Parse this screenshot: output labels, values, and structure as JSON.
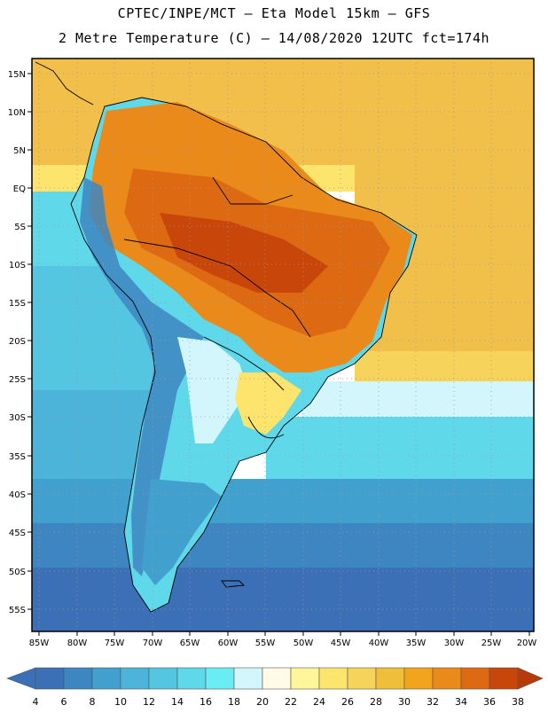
{
  "header": {
    "line1": "CPTEC/INPE/MCT –  Eta Model 15km – GFS",
    "line2": "2 Metre Temperature (C) – 14/08/2020 12UTC fct=174h"
  },
  "map": {
    "lat_labels": [
      "15N",
      "10N",
      "5N",
      "EQ",
      "5S",
      "10S",
      "15S",
      "20S",
      "25S",
      "30S",
      "35S",
      "40S",
      "45S",
      "50S",
      "55S"
    ],
    "lon_labels": [
      "85W",
      "80W",
      "75W",
      "70W",
      "65W",
      "60W",
      "55W",
      "50W",
      "45W",
      "40W",
      "35W",
      "30W",
      "25W",
      "20W"
    ],
    "grid": "dotted"
  },
  "colorbar": {
    "labels": [
      "4",
      "6",
      "8",
      "10",
      "12",
      "14",
      "16",
      "18",
      "20",
      "22",
      "24",
      "26",
      "28",
      "30",
      "32",
      "34",
      "36",
      "38"
    ],
    "colors": [
      "#3b6fb6",
      "#3d86c2",
      "#42a0cf",
      "#4cb4d9",
      "#55c6e2",
      "#5fd8ea",
      "#6aecf4",
      "#d2f6fb",
      "#fffbe6",
      "#fff59a",
      "#fde46c",
      "#f6d35a",
      "#efbf3a",
      "#f2a41c",
      "#ea8a1a",
      "#dd6a12",
      "#c8460a",
      "#b83a08"
    ]
  }
}
